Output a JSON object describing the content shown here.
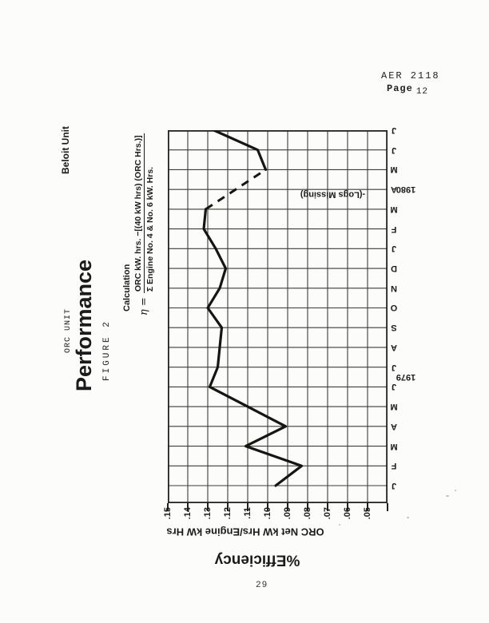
{
  "page": {
    "doc_ref": "AER 2118",
    "page_label": "Page",
    "page_label_number": "12",
    "page_number_bottom": "29"
  },
  "figure": {
    "unit_label": "ORC UNIT",
    "title": "Performance",
    "figure_label": "FIGURE 2",
    "unit_name": "Beloit Unit",
    "calculation_heading": "Calculation",
    "formula": {
      "lhs": "η =",
      "numerator": "ORC kW. hrs. −[(40 kW hrs) (ORC Hrs.)]",
      "denominator": "Σ Engine No. 4 & No. 6 kW. Hrs."
    }
  },
  "chart_data": {
    "type": "line",
    "title": "ORC Unit Performance — Beloit Unit",
    "ylabel": "%Efficiency",
    "ylabel_secondary": "ORC Net kW Hrs/Engine kW Hrs",
    "x_months": [
      "J",
      "F",
      "M",
      "A",
      "M",
      "J",
      "J",
      "A",
      "S",
      "O",
      "N",
      "D",
      "J",
      "F",
      "M",
      "A",
      "M",
      "J",
      "J"
    ],
    "year_labels": [
      {
        "label": "1979",
        "center_month_index": 5.5
      },
      {
        "label": "1980",
        "center_month_index": 15
      }
    ],
    "series": [
      {
        "name": "ORC Net kW Hrs / Engine kW Hrs",
        "values": [
          0.096,
          0.083,
          0.111,
          0.091,
          0.11,
          0.129,
          0.125,
          0.124,
          0.123,
          0.13,
          0.124,
          0.121,
          0.126,
          0.132,
          0.131,
          null,
          0.101,
          0.105,
          0.127
        ]
      }
    ],
    "missing": {
      "leader": "-",
      "text": "(Logs Missing)",
      "month_index": 15,
      "note": "dashed segment from Mar 1980 to May 1980"
    },
    "yticks": [
      ".15",
      ".14",
      ".13",
      ".12",
      ".11",
      ".10",
      ".09",
      ".08",
      ".07",
      ".06",
      ".05"
    ],
    "ylim": [
      0.04,
      0.15
    ],
    "grid": true,
    "legend": false,
    "orientation": "chart rotated 90° CCW on portrait page"
  }
}
